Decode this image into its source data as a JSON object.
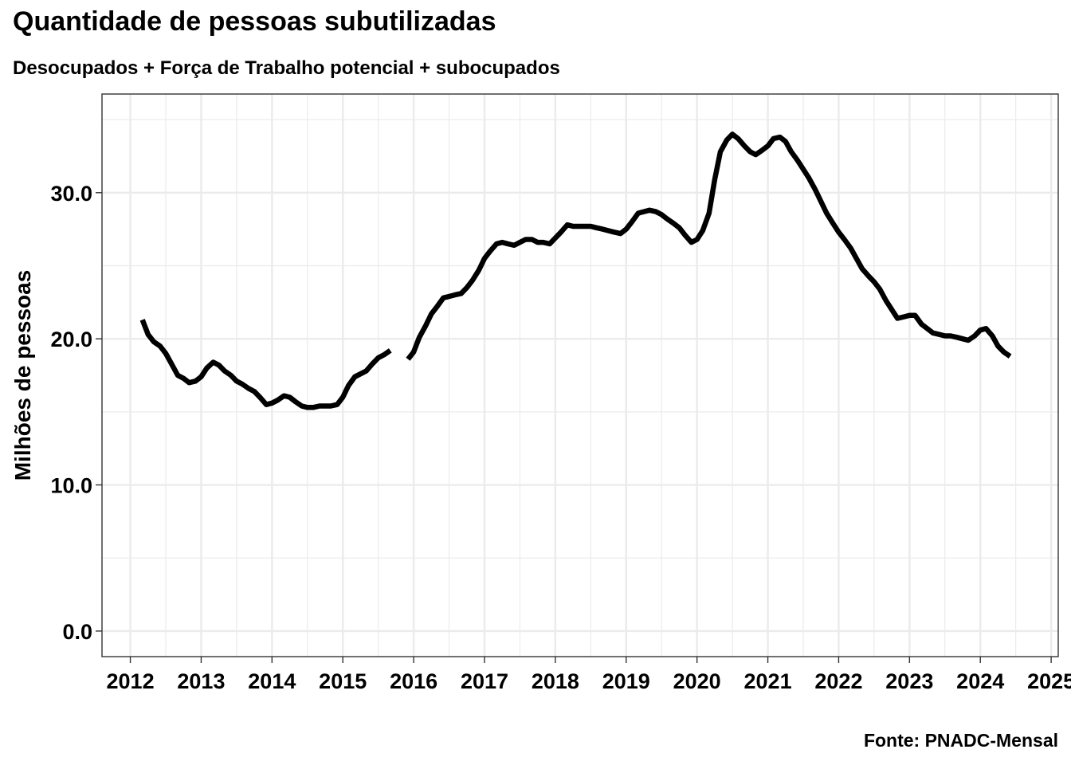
{
  "chart_data": {
    "type": "line",
    "title": "Quantidade de pessoas subutilizadas",
    "subtitle": "Desocupados + Força de Trabalho potencial + subocupados",
    "caption": "Fonte: PNADC-Mensal",
    "xlabel": "",
    "ylabel": "Milhões de pessoas",
    "xlim": [
      2011.6,
      2025.1
    ],
    "ylim": [
      -1.75,
      36.75
    ],
    "x_ticks": [
      2012,
      2013,
      2014,
      2015,
      2016,
      2017,
      2018,
      2019,
      2020,
      2021,
      2022,
      2023,
      2024,
      2025
    ],
    "x_tick_labels": [
      "2012",
      "2013",
      "2014",
      "2015",
      "2016",
      "2017",
      "2018",
      "2019",
      "2020",
      "2021",
      "2022",
      "2023",
      "2024",
      "2025"
    ],
    "y_ticks": [
      0,
      10,
      20,
      30
    ],
    "y_tick_labels": [
      "0.0",
      "10.0",
      "20.0",
      "30.0"
    ],
    "grid": true,
    "legend": "none",
    "colors": {
      "line": "#000000",
      "grid": "#ebebeb",
      "panel_border": "#333333"
    },
    "series": [
      {
        "segments": [
          [
            [
              2012.17,
              21.3
            ],
            [
              2012.25,
              20.3
            ],
            [
              2012.33,
              19.8
            ],
            [
              2012.42,
              19.5
            ],
            [
              2012.5,
              19.0
            ],
            [
              2012.58,
              18.3
            ],
            [
              2012.67,
              17.5
            ],
            [
              2012.75,
              17.3
            ],
            [
              2012.83,
              17.0
            ],
            [
              2012.92,
              17.1
            ],
            [
              2013.0,
              17.4
            ],
            [
              2013.08,
              18.0
            ],
            [
              2013.17,
              18.4
            ],
            [
              2013.25,
              18.2
            ],
            [
              2013.33,
              17.8
            ],
            [
              2013.42,
              17.5
            ],
            [
              2013.5,
              17.1
            ],
            [
              2013.58,
              16.9
            ],
            [
              2013.67,
              16.6
            ],
            [
              2013.75,
              16.4
            ],
            [
              2013.83,
              16.0
            ],
            [
              2013.92,
              15.5
            ],
            [
              2014.0,
              15.6
            ],
            [
              2014.08,
              15.8
            ],
            [
              2014.17,
              16.1
            ],
            [
              2014.25,
              16.0
            ],
            [
              2014.33,
              15.7
            ],
            [
              2014.42,
              15.4
            ],
            [
              2014.5,
              15.3
            ],
            [
              2014.58,
              15.3
            ],
            [
              2014.67,
              15.4
            ],
            [
              2014.75,
              15.4
            ],
            [
              2014.83,
              15.4
            ],
            [
              2014.92,
              15.5
            ],
            [
              2015.0,
              16.0
            ],
            [
              2015.08,
              16.8
            ],
            [
              2015.17,
              17.4
            ],
            [
              2015.25,
              17.6
            ],
            [
              2015.33,
              17.8
            ],
            [
              2015.42,
              18.3
            ],
            [
              2015.5,
              18.7
            ],
            [
              2015.58,
              18.9
            ],
            [
              2015.67,
              19.2
            ]
          ],
          [
            [
              2015.92,
              18.6
            ],
            [
              2016.0,
              19.1
            ],
            [
              2016.08,
              20.1
            ],
            [
              2016.17,
              20.9
            ],
            [
              2016.25,
              21.7
            ],
            [
              2016.33,
              22.2
            ],
            [
              2016.42,
              22.8
            ],
            [
              2016.5,
              22.9
            ],
            [
              2016.58,
              23.0
            ],
            [
              2016.67,
              23.1
            ],
            [
              2016.75,
              23.5
            ],
            [
              2016.83,
              24.0
            ],
            [
              2016.92,
              24.7
            ],
            [
              2017.0,
              25.5
            ],
            [
              2017.08,
              26.0
            ],
            [
              2017.17,
              26.5
            ],
            [
              2017.25,
              26.6
            ],
            [
              2017.33,
              26.5
            ],
            [
              2017.42,
              26.4
            ],
            [
              2017.5,
              26.6
            ],
            [
              2017.58,
              26.8
            ],
            [
              2017.67,
              26.8
            ],
            [
              2017.75,
              26.6
            ],
            [
              2017.83,
              26.6
            ],
            [
              2017.92,
              26.5
            ],
            [
              2018.0,
              26.9
            ],
            [
              2018.08,
              27.3
            ],
            [
              2018.17,
              27.8
            ],
            [
              2018.25,
              27.7
            ],
            [
              2018.33,
              27.7
            ],
            [
              2018.42,
              27.7
            ],
            [
              2018.5,
              27.7
            ],
            [
              2018.58,
              27.6
            ],
            [
              2018.67,
              27.5
            ],
            [
              2018.75,
              27.4
            ],
            [
              2018.83,
              27.3
            ],
            [
              2018.92,
              27.2
            ],
            [
              2019.0,
              27.5
            ],
            [
              2019.08,
              28.0
            ],
            [
              2019.17,
              28.6
            ],
            [
              2019.25,
              28.7
            ],
            [
              2019.33,
              28.8
            ],
            [
              2019.42,
              28.7
            ],
            [
              2019.5,
              28.5
            ],
            [
              2019.58,
              28.2
            ],
            [
              2019.67,
              27.9
            ],
            [
              2019.75,
              27.6
            ],
            [
              2019.83,
              27.1
            ],
            [
              2019.92,
              26.6
            ],
            [
              2020.0,
              26.8
            ],
            [
              2020.08,
              27.4
            ],
            [
              2020.17,
              28.6
            ],
            [
              2020.25,
              30.9
            ],
            [
              2020.33,
              32.8
            ],
            [
              2020.42,
              33.6
            ],
            [
              2020.5,
              34.0
            ],
            [
              2020.58,
              33.7
            ],
            [
              2020.67,
              33.2
            ],
            [
              2020.75,
              32.8
            ],
            [
              2020.83,
              32.6
            ],
            [
              2020.92,
              32.9
            ],
            [
              2021.0,
              33.2
            ],
            [
              2021.08,
              33.7
            ],
            [
              2021.17,
              33.8
            ],
            [
              2021.25,
              33.5
            ],
            [
              2021.33,
              32.8
            ],
            [
              2021.42,
              32.2
            ],
            [
              2021.5,
              31.6
            ],
            [
              2021.58,
              31.0
            ],
            [
              2021.67,
              30.2
            ],
            [
              2021.75,
              29.4
            ],
            [
              2021.83,
              28.6
            ],
            [
              2021.92,
              27.9
            ],
            [
              2022.0,
              27.3
            ],
            [
              2022.08,
              26.8
            ],
            [
              2022.17,
              26.2
            ],
            [
              2022.25,
              25.5
            ],
            [
              2022.33,
              24.8
            ],
            [
              2022.42,
              24.3
            ],
            [
              2022.5,
              23.9
            ],
            [
              2022.58,
              23.4
            ],
            [
              2022.67,
              22.6
            ],
            [
              2022.75,
              22.0
            ],
            [
              2022.83,
              21.4
            ],
            [
              2022.92,
              21.5
            ],
            [
              2023.0,
              21.6
            ],
            [
              2023.08,
              21.6
            ],
            [
              2023.17,
              21.0
            ],
            [
              2023.25,
              20.7
            ],
            [
              2023.33,
              20.4
            ],
            [
              2023.42,
              20.3
            ],
            [
              2023.5,
              20.2
            ],
            [
              2023.58,
              20.2
            ],
            [
              2023.67,
              20.1
            ],
            [
              2023.75,
              20.0
            ],
            [
              2023.83,
              19.9
            ],
            [
              2023.92,
              20.2
            ],
            [
              2024.0,
              20.6
            ],
            [
              2024.08,
              20.7
            ],
            [
              2024.17,
              20.2
            ],
            [
              2024.25,
              19.5
            ],
            [
              2024.33,
              19.1
            ],
            [
              2024.42,
              18.8
            ]
          ]
        ]
      }
    ]
  }
}
